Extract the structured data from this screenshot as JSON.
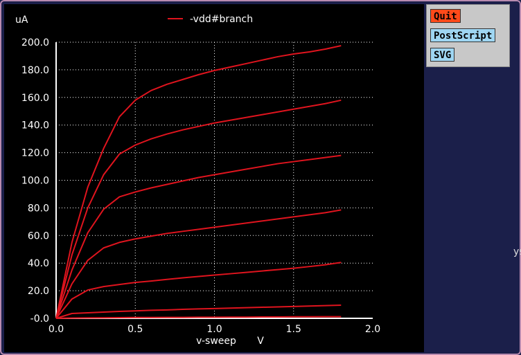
{
  "buttons": {
    "quit": "Quit",
    "postscript": "PostScript",
    "svg": "SVG"
  },
  "edge_fragment": "ys",
  "colors": {
    "background": "#000000",
    "grid": "#ffffff",
    "trace": "#e0141e",
    "axis_text": "#ffffff"
  },
  "chart_data": {
    "type": "line",
    "title": "",
    "legend": {
      "label": "-vdd#branch",
      "position": "top-center"
    },
    "ylabel": "uA",
    "xlabel": "v-sweep",
    "xunit": "V",
    "xlim": [
      0,
      2.0
    ],
    "ylim": [
      0,
      200
    ],
    "grid": true,
    "x_ticks": [
      "0.0",
      "0.5",
      "1.0",
      "1.5",
      "2.0"
    ],
    "y_ticks": [
      "-0.0",
      "20.0",
      "40.0",
      "60.0",
      "80.0",
      "100.0",
      "120.0",
      "140.0",
      "160.0",
      "180.0",
      "200.0"
    ],
    "x": [
      0,
      0.1,
      0.2,
      0.3,
      0.4,
      0.5,
      0.6,
      0.7,
      0.8,
      0.9,
      1.0,
      1.1,
      1.2,
      1.3,
      1.4,
      1.5,
      1.6,
      1.7,
      1.8
    ],
    "series": [
      {
        "values": [
          0,
          0.2,
          0.3,
          0.4,
          0.5,
          0.6,
          0.6,
          0.7,
          0.7,
          0.8,
          0.8,
          0.9,
          0.9,
          1.0,
          1.0,
          1.1,
          1.1,
          1.2,
          1.2
        ]
      },
      {
        "values": [
          0,
          3.5,
          4.0,
          4.5,
          5.0,
          5.4,
          5.8,
          6.1,
          6.5,
          6.8,
          7.1,
          7.4,
          7.7,
          8.0,
          8.3,
          8.6,
          8.9,
          9.2,
          9.5
        ]
      },
      {
        "values": [
          0,
          14,
          20.5,
          23,
          24.5,
          26,
          27,
          28.2,
          29.3,
          30.3,
          31.3,
          32.3,
          33.3,
          34.3,
          35.3,
          36.3,
          37.5,
          38.8,
          40.5
        ]
      },
      {
        "values": [
          0,
          25,
          42,
          51,
          55,
          57.5,
          59.5,
          61.5,
          63,
          64.5,
          66,
          67.5,
          69,
          70.5,
          72,
          73.5,
          75,
          76.5,
          78.5
        ]
      },
      {
        "values": [
          0,
          35,
          62,
          79,
          88,
          91.5,
          94.5,
          97,
          99.5,
          102,
          104,
          106,
          108,
          110,
          112,
          113.5,
          115,
          116.5,
          118
        ]
      },
      {
        "values": [
          0,
          46,
          80,
          104,
          119,
          125.5,
          130,
          133.5,
          136.5,
          139,
          141.5,
          143.5,
          145.5,
          147.5,
          149.5,
          151.5,
          153.5,
          155.5,
          158
        ]
      },
      {
        "values": [
          0,
          55,
          95,
          123,
          146,
          158,
          165,
          169.5,
          173,
          176.5,
          179.5,
          182,
          184.5,
          187,
          189.5,
          191.5,
          193,
          195,
          197.5
        ]
      }
    ]
  }
}
